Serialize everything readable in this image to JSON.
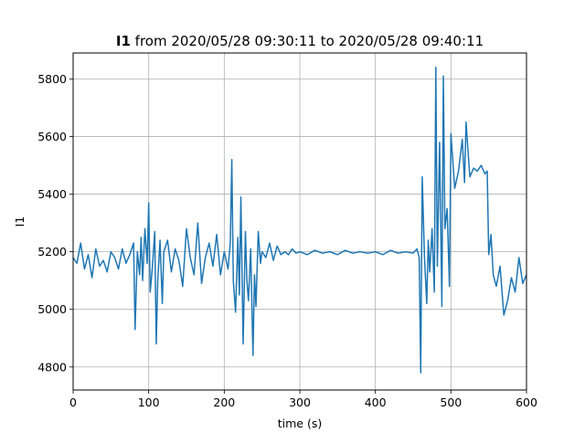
{
  "chart_data": {
    "type": "line",
    "title_bold": "I1",
    "title_rest": " from 2020/05/28 09:30:11 to 2020/05/28 09:40:11",
    "xlabel": "time (s)",
    "ylabel": "I1",
    "xlim": [
      0,
      600
    ],
    "ylim": [
      4720,
      5890
    ],
    "xticks": [
      0,
      100,
      200,
      300,
      400,
      500,
      600
    ],
    "yticks": [
      4800,
      5000,
      5200,
      5400,
      5600,
      5800
    ],
    "grid": true,
    "line_color": "#1f77b4",
    "series": [
      {
        "x": [
          0,
          5,
          10,
          15,
          20,
          25,
          30,
          35,
          40,
          45,
          50,
          55,
          60,
          65,
          70,
          75,
          80,
          82,
          85,
          88,
          90,
          92,
          95,
          98,
          100,
          102,
          105,
          108,
          110,
          112,
          115,
          118,
          120,
          125,
          130,
          135,
          140,
          145,
          150,
          155,
          160,
          165,
          170,
          175,
          180,
          185,
          190,
          195,
          200,
          205,
          208,
          210,
          212,
          215,
          218,
          220,
          222,
          225,
          228,
          230,
          232,
          235,
          238,
          240,
          242,
          245,
          248,
          250,
          255,
          260,
          265,
          270,
          275,
          280,
          285,
          290,
          295,
          300,
          310,
          320,
          330,
          340,
          350,
          360,
          370,
          380,
          390,
          400,
          410,
          420,
          430,
          440,
          450,
          455,
          458,
          460,
          462,
          465,
          468,
          470,
          472,
          475,
          478,
          480,
          482,
          485,
          488,
          490,
          492,
          495,
          498,
          500,
          505,
          510,
          515,
          518,
          520,
          525,
          530,
          535,
          540,
          545,
          548,
          550,
          553,
          556,
          560,
          565,
          570,
          575,
          580,
          585,
          590,
          595,
          600
        ],
        "y": [
          5180,
          5160,
          5230,
          5140,
          5190,
          5110,
          5210,
          5150,
          5170,
          5130,
          5200,
          5180,
          5140,
          5210,
          5160,
          5190,
          5230,
          4930,
          5200,
          5120,
          5250,
          5100,
          5280,
          5160,
          5370,
          5060,
          5150,
          5270,
          4880,
          5100,
          5240,
          5020,
          5200,
          5240,
          5130,
          5210,
          5170,
          5080,
          5280,
          5180,
          5120,
          5300,
          5090,
          5180,
          5230,
          5150,
          5260,
          5120,
          5200,
          5140,
          5230,
          5520,
          5100,
          4990,
          5250,
          5050,
          5390,
          4880,
          5270,
          5100,
          5030,
          5210,
          4840,
          5120,
          5010,
          5270,
          5160,
          5200,
          5180,
          5230,
          5170,
          5220,
          5190,
          5200,
          5190,
          5210,
          5195,
          5200,
          5190,
          5205,
          5195,
          5200,
          5190,
          5205,
          5195,
          5200,
          5195,
          5200,
          5190,
          5205,
          5195,
          5200,
          5195,
          5210,
          5180,
          4780,
          5460,
          5180,
          5020,
          5240,
          5130,
          5280,
          5060,
          5840,
          5150,
          5580,
          5010,
          5810,
          5280,
          5350,
          5080,
          5610,
          5420,
          5480,
          5590,
          5440,
          5650,
          5460,
          5490,
          5480,
          5500,
          5470,
          5480,
          5190,
          5260,
          5120,
          5080,
          5150,
          4980,
          5030,
          5110,
          5060,
          5180,
          5090,
          5120
        ]
      }
    ]
  }
}
